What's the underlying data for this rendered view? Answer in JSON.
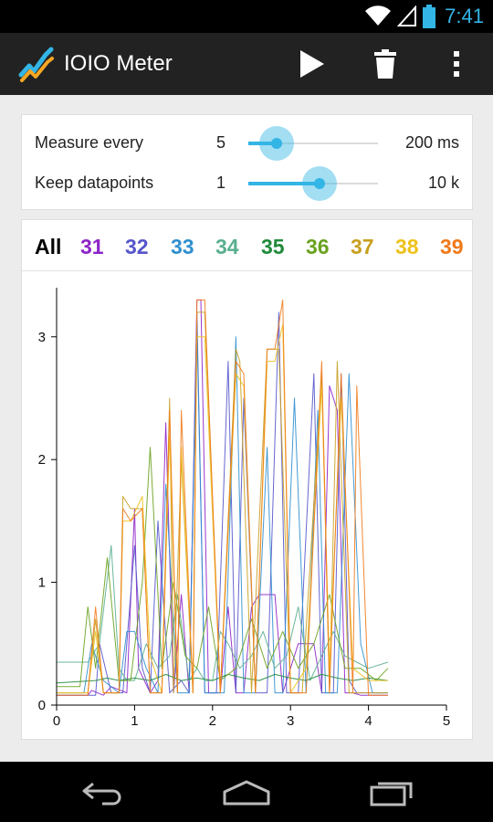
{
  "status_bar": {
    "time": "7:41",
    "icons": [
      "wifi-icon",
      "signal-icon",
      "battery-icon"
    ]
  },
  "action_bar": {
    "title": "IOIO Meter",
    "icons": [
      "app-chart-icon",
      "play-icon",
      "trash-icon",
      "overflow-menu-icon"
    ]
  },
  "settings": {
    "measure": {
      "label": "Measure every",
      "value": "5",
      "max_label": "200 ms",
      "fraction": 0.22
    },
    "keep": {
      "label": "Keep datapoints",
      "value": "1",
      "max_label": "10 k",
      "fraction": 0.55
    }
  },
  "tabs": [
    {
      "label": "All",
      "color": "#000000"
    },
    {
      "label": "31",
      "color": "#8e24c8"
    },
    {
      "label": "32",
      "color": "#5555cc"
    },
    {
      "label": "33",
      "color": "#2f8fd0"
    },
    {
      "label": "34",
      "color": "#5aaf8f"
    },
    {
      "label": "35",
      "color": "#1f8a3a"
    },
    {
      "label": "36",
      "color": "#6aa21f"
    },
    {
      "label": "37",
      "color": "#c8a020"
    },
    {
      "label": "38",
      "color": "#eec21c"
    },
    {
      "label": "39",
      "color": "#f07a1a"
    }
  ],
  "chart_data": {
    "type": "line",
    "xlim": [
      0,
      5
    ],
    "ylim": [
      0,
      3.4
    ],
    "x_ticks": [
      0,
      1,
      2,
      3,
      4,
      5
    ],
    "y_ticks": [
      0,
      1,
      2,
      3
    ],
    "series": [
      {
        "color": "#8e24c8",
        "x": [
          0,
          0.4,
          0.45,
          0.6,
          0.7,
          0.9,
          1.0,
          1.05,
          1.2,
          1.3,
          1.4,
          1.5,
          1.6,
          1.7,
          1.8,
          1.85,
          1.95,
          2.1,
          2.2,
          2.3,
          2.4,
          2.5,
          2.6,
          2.8,
          2.9,
          3.1,
          3.2,
          3.3,
          3.4,
          3.5,
          3.6,
          3.7,
          3.8,
          3.9,
          4.0,
          4.25
        ],
        "y": [
          0.08,
          0.08,
          0.12,
          0.08,
          0.15,
          0.1,
          1.6,
          0.3,
          0.1,
          0.2,
          2.3,
          0.1,
          0.9,
          0.1,
          3.3,
          3.3,
          0.1,
          0.1,
          0.8,
          0.1,
          0.1,
          0.8,
          0.9,
          0.9,
          0.1,
          0.5,
          0.5,
          0.5,
          0.1,
          2.6,
          2.4,
          0.1,
          0.1,
          0.08,
          0.08,
          0.08
        ]
      },
      {
        "color": "#5555cc",
        "x": [
          0,
          0.5,
          0.55,
          0.7,
          0.85,
          1.0,
          1.1,
          1.2,
          1.3,
          1.45,
          1.6,
          1.7,
          1.8,
          1.9,
          2.05,
          2.2,
          2.3,
          2.4,
          2.55,
          2.7,
          2.85,
          2.95,
          3.1,
          3.3,
          3.4,
          3.55,
          3.65,
          3.75,
          3.85,
          4.0,
          4.25
        ],
        "y": [
          0.08,
          0.08,
          0.5,
          0.1,
          0.1,
          1.3,
          0.3,
          0.1,
          1.5,
          0.1,
          0.2,
          0.1,
          3.2,
          0.1,
          0.1,
          2.8,
          0.1,
          2.5,
          0.1,
          0.1,
          3.2,
          0.1,
          0.1,
          2.7,
          0.1,
          0.1,
          2.7,
          0.2,
          0.1,
          0.1,
          0.1
        ]
      },
      {
        "color": "#2f8fd0",
        "x": [
          0,
          0.35,
          0.45,
          0.6,
          0.8,
          0.9,
          1.0,
          1.15,
          1.3,
          1.4,
          1.55,
          1.7,
          1.8,
          1.9,
          2.0,
          2.15,
          2.3,
          2.4,
          2.55,
          2.7,
          2.8,
          2.9,
          3.05,
          3.2,
          3.35,
          3.45,
          3.6,
          3.75,
          3.9,
          4.05,
          4.25
        ],
        "y": [
          0.1,
          0.1,
          0.5,
          0.2,
          0.1,
          0.6,
          0.6,
          0.3,
          0.1,
          1.8,
          0.1,
          0.1,
          3.1,
          0.1,
          0.1,
          0.1,
          3.0,
          0.1,
          0.1,
          2.1,
          0.1,
          0.1,
          2.5,
          0.1,
          2.4,
          0.1,
          0.1,
          2.7,
          0.5,
          0.1,
          0.1
        ]
      },
      {
        "color": "#5aaf8f",
        "x": [
          0,
          0.3,
          0.4,
          0.55,
          0.7,
          0.8,
          0.9,
          1.0,
          1.15,
          1.3,
          1.45,
          1.55,
          1.7,
          1.8,
          1.9,
          2.0,
          2.1,
          2.2,
          2.35,
          2.5,
          2.65,
          2.8,
          2.95,
          3.1,
          3.25,
          3.4,
          3.55,
          3.7,
          3.85,
          4.0,
          4.25
        ],
        "y": [
          0.35,
          0.35,
          0.35,
          0.5,
          1.3,
          0.3,
          0.2,
          0.2,
          0.5,
          0.3,
          0.4,
          0.9,
          0.2,
          0.3,
          0.2,
          0.2,
          0.6,
          0.5,
          0.3,
          0.4,
          0.6,
          0.3,
          0.4,
          0.8,
          0.2,
          0.4,
          0.6,
          0.4,
          0.35,
          0.3,
          0.35
        ]
      },
      {
        "color": "#1f8a3a",
        "x": [
          0,
          0.5,
          0.65,
          0.8,
          1.0,
          1.2,
          1.4,
          1.6,
          1.8,
          2.0,
          2.2,
          2.4,
          2.6,
          2.8,
          3.0,
          3.2,
          3.4,
          3.6,
          3.8,
          4.0,
          4.25
        ],
        "y": [
          0.18,
          0.2,
          0.22,
          0.2,
          0.22,
          0.2,
          0.25,
          0.2,
          0.22,
          0.2,
          0.25,
          0.22,
          0.2,
          0.25,
          0.22,
          0.2,
          0.25,
          0.22,
          0.2,
          0.22,
          0.2
        ]
      },
      {
        "color": "#6aa21f",
        "x": [
          0,
          0.3,
          0.4,
          0.5,
          0.65,
          0.8,
          0.95,
          1.1,
          1.2,
          1.35,
          1.5,
          1.65,
          1.8,
          1.95,
          2.1,
          2.3,
          2.5,
          2.7,
          2.9,
          3.1,
          3.3,
          3.5,
          3.7,
          3.9,
          4.1,
          4.25
        ],
        "y": [
          0.15,
          0.15,
          0.8,
          0.3,
          1.2,
          0.2,
          0.2,
          1.0,
          2.1,
          0.3,
          1.0,
          0.4,
          0.3,
          0.8,
          0.2,
          0.3,
          0.7,
          0.3,
          0.6,
          0.3,
          0.5,
          0.9,
          0.3,
          0.3,
          0.2,
          0.3
        ]
      },
      {
        "color": "#c8a020",
        "x": [
          0,
          0.4,
          0.5,
          0.6,
          0.8,
          0.85,
          0.95,
          1.1,
          1.2,
          1.35,
          1.45,
          1.5,
          1.6,
          1.75,
          1.8,
          1.9,
          2.1,
          2.3,
          2.35,
          2.5,
          2.7,
          2.75,
          2.85,
          3.0,
          3.15,
          3.4,
          3.5,
          3.6,
          3.75,
          3.9,
          4.25
        ],
        "y": [
          0.1,
          0.1,
          0.7,
          0.1,
          0.1,
          1.7,
          1.6,
          1.6,
          0.1,
          0.1,
          2.5,
          0.1,
          2.0,
          0.1,
          3.2,
          3.2,
          0.1,
          2.9,
          2.8,
          0.1,
          2.9,
          2.9,
          2.9,
          0.1,
          0.1,
          2.7,
          0.1,
          2.8,
          0.1,
          0.1,
          0.1
        ]
      },
      {
        "color": "#eec21c",
        "x": [
          0,
          0.4,
          0.5,
          0.6,
          0.8,
          0.85,
          0.95,
          1.1,
          1.2,
          1.35,
          1.45,
          1.55,
          1.6,
          1.75,
          1.8,
          1.9,
          2.1,
          2.3,
          2.4,
          2.55,
          2.7,
          2.8,
          2.9,
          3.0,
          3.2,
          3.4,
          3.5,
          3.65,
          3.8,
          4.0,
          4.25
        ],
        "y": [
          0.1,
          0.1,
          0.6,
          0.1,
          0.1,
          1.5,
          1.5,
          1.7,
          0.4,
          0.1,
          2.2,
          0.1,
          2.1,
          0.1,
          3.0,
          3.0,
          0.1,
          2.7,
          2.6,
          0.1,
          2.8,
          2.8,
          3.1,
          0.1,
          0.3,
          2.6,
          0.3,
          2.5,
          0.3,
          0.2,
          0.2
        ]
      },
      {
        "color": "#f07a1a",
        "x": [
          0,
          0.4,
          0.5,
          0.6,
          0.8,
          0.85,
          0.95,
          1.1,
          1.2,
          1.35,
          1.45,
          1.55,
          1.6,
          1.75,
          1.8,
          1.9,
          2.1,
          2.3,
          2.4,
          2.55,
          2.7,
          2.8,
          2.9,
          3.0,
          3.2,
          3.4,
          3.5,
          3.65,
          3.8,
          3.85,
          4.0,
          4.25
        ],
        "y": [
          0.08,
          0.08,
          0.8,
          0.1,
          0.1,
          1.6,
          1.5,
          1.6,
          0.1,
          0.1,
          2.4,
          0.1,
          2.4,
          0.1,
          3.3,
          3.3,
          0.1,
          2.8,
          2.7,
          0.1,
          2.9,
          2.9,
          3.3,
          0.1,
          0.1,
          2.8,
          0.1,
          2.7,
          0.1,
          2.6,
          0.08,
          0.08
        ]
      }
    ]
  }
}
